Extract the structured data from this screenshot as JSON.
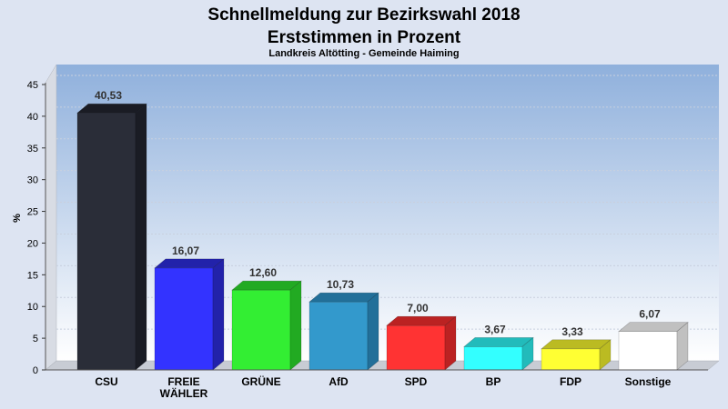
{
  "header": {
    "title_line1": "Schnellmeldung zur Bezirkswahl 2018",
    "title_line2": "Erststimmen in Prozent",
    "subtitle": "Landkreis Altötting - Gemeinde Haiming"
  },
  "chart_data": {
    "type": "bar",
    "title": "Schnellmeldung zur Bezirkswahl 2018 Erststimmen in Prozent",
    "subtitle": "Landkreis Altötting - Gemeinde Haiming",
    "ylabel": "%",
    "xlabel": "",
    "ylim": [
      0,
      45
    ],
    "yticks": [
      0,
      5,
      10,
      15,
      20,
      25,
      30,
      35,
      40,
      45
    ],
    "grid": true,
    "categories": [
      [
        "CSU"
      ],
      [
        "FREIE",
        "WÄHLER"
      ],
      [
        "GRÜNE"
      ],
      [
        "AfD"
      ],
      [
        "SPD"
      ],
      [
        "BP"
      ],
      [
        "FDP"
      ],
      [
        "Sonstige"
      ]
    ],
    "values": [
      40.53,
      16.07,
      12.6,
      10.73,
      7.0,
      3.67,
      3.33,
      6.07
    ],
    "value_labels": [
      "40,53",
      "16,07",
      "12,60",
      "10,73",
      "7,00",
      "3,67",
      "3,33",
      "6,07"
    ],
    "colors": [
      "#2a2d38",
      "#3333ff",
      "#33ee33",
      "#3399cc",
      "#ff3333",
      "#33ffff",
      "#ffff33",
      "#ffffff"
    ],
    "side_colors": [
      "#1a1c24",
      "#2222aa",
      "#22aa22",
      "#226f99",
      "#bb2222",
      "#22bbbb",
      "#bbbb22",
      "#c0c0c0"
    ]
  }
}
